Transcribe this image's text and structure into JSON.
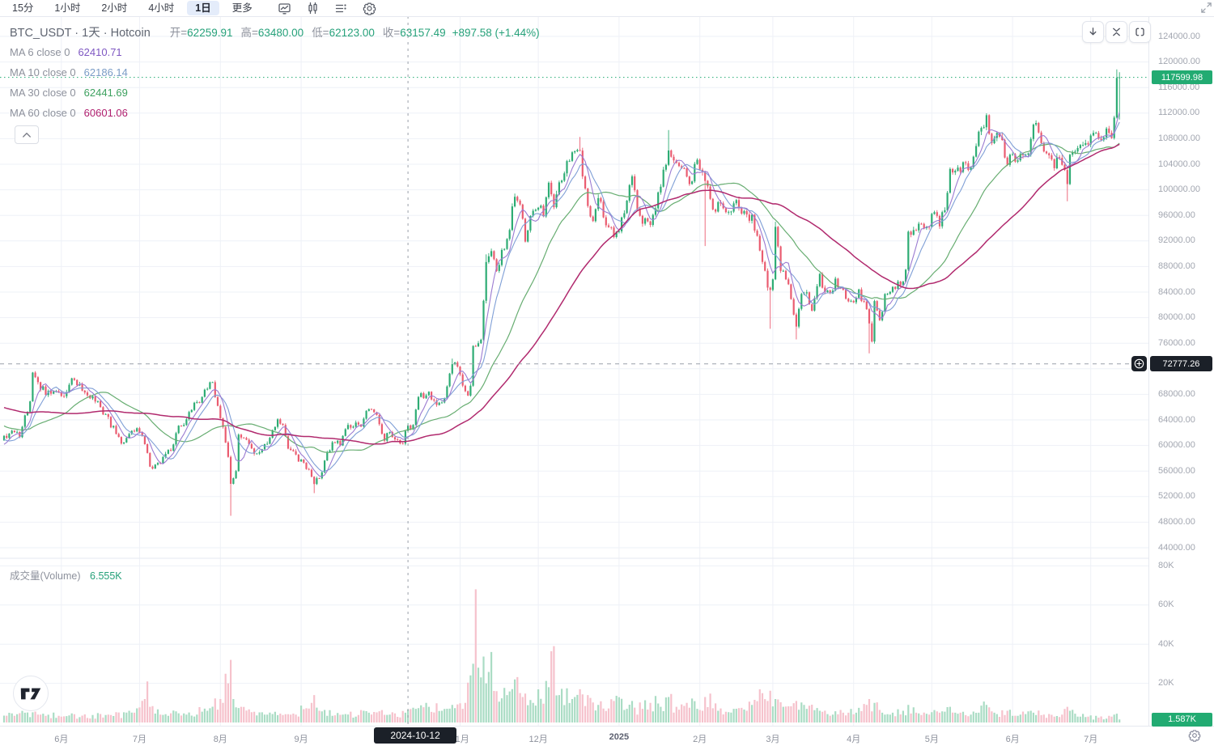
{
  "toolbar": {
    "intervals": [
      {
        "label": "15分",
        "active": false
      },
      {
        "label": "1小时",
        "active": false
      },
      {
        "label": "2小时",
        "active": false
      },
      {
        "label": "4小时",
        "active": false
      },
      {
        "label": "1日",
        "active": true
      },
      {
        "label": "更多",
        "active": false
      }
    ],
    "icons": [
      "chart-layout-icon",
      "candlestick-style-icon",
      "indicator-list-icon",
      "settings-gear-icon"
    ],
    "window_icon": "expand-window-icon"
  },
  "header": {
    "title": "BTC_USDT · 1天 · Hotcoin",
    "fields": [
      {
        "label": "开=",
        "value": "62259.91"
      },
      {
        "label": "高=",
        "value": "63480.00"
      },
      {
        "label": "低=",
        "value": "62123.00"
      },
      {
        "label": "收=",
        "value": "63157.49"
      }
    ],
    "change": "+897.58 (+1.44%)"
  },
  "ma_legend": [
    {
      "label": "MA 6 close 0",
      "value": "62410.71",
      "color": "#7e57c2"
    },
    {
      "label": "MA 10 close 0",
      "value": "62186.14",
      "color": "#7a9cc6"
    },
    {
      "label": "MA 30 close 0",
      "value": "62441.69",
      "color": "#3da15f"
    },
    {
      "label": "MA 60 close 0",
      "value": "60601.06",
      "color": "#b01e6e"
    }
  ],
  "price_axis": {
    "current_price": "117599.98",
    "crosshair_price": "72777.26"
  },
  "volume_pane": {
    "legend_label": "成交量(Volume)",
    "legend_value": "6.555K",
    "last_value": "1.587K"
  },
  "time_axis": {
    "crosshair_date": "2024-10-12"
  },
  "colors": {
    "up": "#2eac74",
    "down": "#ea5c70",
    "up_vol": "#aadcc4",
    "down_vol": "#f6c2cc",
    "badge_green": "#22ab72",
    "badge_dark": "#1b2028",
    "grid": "#eef1f7",
    "crosshair": "#9aa0aa",
    "ma6": "#9b7bd1",
    "ma10": "#7f9fd6",
    "ma30": "#67ad71",
    "ma60": "#b12a6e"
  },
  "chart_data": {
    "type": "candlestick+volume",
    "symbol": "BTC_USDT",
    "interval": "1天",
    "exchange": "Hotcoin",
    "legend_note": "legend values shown at crosshair date",
    "ohlc_at_crosshair": {
      "date": "2024-10-12",
      "open": 62259.91,
      "high": 63480.0,
      "low": 62123.0,
      "close": 63157.49,
      "change": 897.58,
      "change_pct": 1.44,
      "volume_k": 6.555
    },
    "moving_averages_at_crosshair": [
      {
        "period": 6,
        "value": 62410.71
      },
      {
        "period": 10,
        "value": 62186.14
      },
      {
        "period": 30,
        "value": 62441.69
      },
      {
        "period": 60,
        "value": 60601.06
      }
    ],
    "last": {
      "close": 117599.98,
      "volume_k": 1.587
    },
    "price_axis": {
      "max": 124000,
      "min": 44000,
      "tick_step": 4000,
      "y_ticks": [
        124000,
        120000,
        116000,
        112000,
        108000,
        104000,
        100000,
        96000,
        92000,
        88000,
        84000,
        80000,
        76000,
        68000,
        64000,
        60000,
        56000,
        52000,
        48000,
        44000
      ]
    },
    "volume_axis": {
      "ticks_k": [
        80,
        60,
        40,
        20
      ]
    },
    "x_ticks": [
      {
        "label": "6月",
        "i": 22
      },
      {
        "label": "7月",
        "i": 52
      },
      {
        "label": "8月",
        "i": 83
      },
      {
        "label": "9月",
        "i": 114
      },
      {
        "label": "11月",
        "i": 175
      },
      {
        "label": "12月",
        "i": 205
      },
      {
        "label": "2025",
        "i": 236,
        "year": true
      },
      {
        "label": "2月",
        "i": 267
      },
      {
        "label": "3月",
        "i": 295
      },
      {
        "label": "4月",
        "i": 326
      },
      {
        "label": "5月",
        "i": 356
      },
      {
        "label": "6月",
        "i": 387
      },
      {
        "label": "7月",
        "i": 417
      }
    ],
    "crosshair": {
      "candle_index": 155,
      "price": 72777.26,
      "date": "2024-10-12"
    },
    "candles_visible": 429,
    "warmup": 60,
    "start_date": "2024-05-10",
    "price_anchors": [
      [
        -60,
        68300
      ],
      [
        -50,
        67500
      ],
      [
        -42,
        69800
      ],
      [
        -34,
        70700
      ],
      [
        -26,
        64000
      ],
      [
        -18,
        63800
      ],
      [
        -10,
        63900
      ],
      [
        -4,
        59000
      ],
      [
        -1,
        60800
      ],
      [
        0,
        61500
      ],
      [
        3,
        62300
      ],
      [
        6,
        61300
      ],
      [
        10,
        66900
      ],
      [
        11,
        71400
      ],
      [
        13,
        69900
      ],
      [
        16,
        67900
      ],
      [
        20,
        68500
      ],
      [
        23,
        67700
      ],
      [
        26,
        70500
      ],
      [
        28,
        69400
      ],
      [
        31,
        68300
      ],
      [
        34,
        67700
      ],
      [
        37,
        66000
      ],
      [
        39,
        64900
      ],
      [
        43,
        61800
      ],
      [
        45,
        60300
      ],
      [
        48,
        61800
      ],
      [
        51,
        62700
      ],
      [
        54,
        60200
      ],
      [
        56,
        56700
      ],
      [
        58,
        57000
      ],
      [
        61,
        58200
      ],
      [
        64,
        59200
      ],
      [
        67,
        63100
      ],
      [
        70,
        64100
      ],
      [
        73,
        66700
      ],
      [
        76,
        67600
      ],
      [
        80,
        69900
      ],
      [
        82,
        66200
      ],
      [
        84,
        62900
      ],
      [
        86,
        58200
      ],
      [
        87,
        54000
      ],
      [
        89,
        56000
      ],
      [
        90,
        61700
      ],
      [
        93,
        60900
      ],
      [
        96,
        58700
      ],
      [
        99,
        59400
      ],
      [
        102,
        61200
      ],
      [
        105,
        64100
      ],
      [
        107,
        63200
      ],
      [
        109,
        59500
      ],
      [
        111,
        59100
      ],
      [
        113,
        57500
      ],
      [
        115,
        57300
      ],
      [
        117,
        56200
      ],
      [
        119,
        53960
      ],
      [
        121,
        54850
      ],
      [
        123,
        57650
      ],
      [
        126,
        60500
      ],
      [
        129,
        60000
      ],
      [
        132,
        63200
      ],
      [
        135,
        63600
      ],
      [
        137,
        62950
      ],
      [
        140,
        65700
      ],
      [
        142,
        65200
      ],
      [
        144,
        63330
      ],
      [
        146,
        60750
      ],
      [
        148,
        62100
      ],
      [
        150,
        60950
      ],
      [
        153,
        60280
      ],
      [
        154,
        62259.91
      ],
      [
        155,
        63157.49
      ],
      [
        157,
        63200
      ],
      [
        159,
        67600
      ],
      [
        161,
        67400
      ],
      [
        163,
        68400
      ],
      [
        165,
        67040
      ],
      [
        167,
        66700
      ],
      [
        169,
        67370
      ],
      [
        172,
        72720
      ],
      [
        174,
        72340
      ],
      [
        176,
        69360
      ],
      [
        178,
        67810
      ],
      [
        179,
        69360
      ],
      [
        180,
        75570
      ],
      [
        182,
        76000
      ],
      [
        183,
        76550
      ],
      [
        185,
        88700
      ],
      [
        187,
        90400
      ],
      [
        189,
        87300
      ],
      [
        191,
        90600
      ],
      [
        193,
        92300
      ],
      [
        196,
        98900
      ],
      [
        198,
        97700
      ],
      [
        200,
        91900
      ],
      [
        202,
        95900
      ],
      [
        205,
        97200
      ],
      [
        207,
        95850
      ],
      [
        209,
        101100
      ],
      [
        211,
        97280
      ],
      [
        213,
        101170
      ],
      [
        216,
        104500
      ],
      [
        219,
        106030
      ],
      [
        221,
        106140
      ],
      [
        223,
        100200
      ],
      [
        224,
        97460
      ],
      [
        226,
        95100
      ],
      [
        228,
        98700
      ],
      [
        230,
        95700
      ],
      [
        232,
        94160
      ],
      [
        234,
        92600
      ],
      [
        236,
        93500
      ],
      [
        239,
        98300
      ],
      [
        241,
        102100
      ],
      [
        243,
        96950
      ],
      [
        245,
        94700
      ],
      [
        248,
        94510
      ],
      [
        250,
        97100
      ],
      [
        252,
        100500
      ],
      [
        255,
        106150
      ],
      [
        257,
        104600
      ],
      [
        259,
        103700
      ],
      [
        262,
        102080
      ],
      [
        264,
        101300
      ],
      [
        266,
        104700
      ],
      [
        269,
        101400
      ],
      [
        271,
        98600
      ],
      [
        273,
        96600
      ],
      [
        275,
        97860
      ],
      [
        277,
        96500
      ],
      [
        279,
        96600
      ],
      [
        281,
        98400
      ],
      [
        283,
        96280
      ],
      [
        285,
        96130
      ],
      [
        287,
        96100
      ],
      [
        289,
        92800
      ],
      [
        291,
        88700
      ],
      [
        293,
        84700
      ],
      [
        294,
        84350
      ],
      [
        295,
        86000
      ],
      [
        296,
        94200
      ],
      [
        298,
        87300
      ],
      [
        300,
        86000
      ],
      [
        302,
        82900
      ],
      [
        304,
        78600
      ],
      [
        306,
        83700
      ],
      [
        308,
        83960
      ],
      [
        310,
        81100
      ],
      [
        313,
        86850
      ],
      [
        315,
        84000
      ],
      [
        317,
        83800
      ],
      [
        319,
        86100
      ],
      [
        322,
        84350
      ],
      [
        324,
        82550
      ],
      [
        326,
        82400
      ],
      [
        328,
        84400
      ],
      [
        330,
        82500
      ],
      [
        332,
        79100
      ],
      [
        333,
        76270
      ],
      [
        334,
        82600
      ],
      [
        336,
        79600
      ],
      [
        338,
        83700
      ],
      [
        340,
        84030
      ],
      [
        342,
        84500
      ],
      [
        344,
        85100
      ],
      [
        346,
        87500
      ],
      [
        347,
        93440
      ],
      [
        349,
        93700
      ],
      [
        351,
        94700
      ],
      [
        353,
        94000
      ],
      [
        355,
        94180
      ],
      [
        357,
        96500
      ],
      [
        359,
        94300
      ],
      [
        361,
        96800
      ],
      [
        363,
        103250
      ],
      [
        365,
        102970
      ],
      [
        367,
        102800
      ],
      [
        369,
        104170
      ],
      [
        371,
        103500
      ],
      [
        373,
        106850
      ],
      [
        375,
        109680
      ],
      [
        377,
        111670
      ],
      [
        379,
        107290
      ],
      [
        381,
        108900
      ],
      [
        383,
        107800
      ],
      [
        385,
        103900
      ],
      [
        387,
        105570
      ],
      [
        389,
        104600
      ],
      [
        391,
        105400
      ],
      [
        393,
        105700
      ],
      [
        395,
        110200
      ],
      [
        397,
        108960
      ],
      [
        399,
        106000
      ],
      [
        401,
        105400
      ],
      [
        403,
        103370
      ],
      [
        405,
        105000
      ],
      [
        406,
        103900
      ],
      [
        408,
        100900
      ],
      [
        409,
        105500
      ],
      [
        411,
        106000
      ],
      [
        413,
        107000
      ],
      [
        415,
        107300
      ],
      [
        416,
        107100
      ],
      [
        418,
        108900
      ],
      [
        420,
        108000
      ],
      [
        422,
        108200
      ],
      [
        424,
        108900
      ],
      [
        425,
        108100
      ],
      [
        426,
        111300
      ],
      [
        427,
        117500
      ],
      [
        428,
        117599.98
      ]
    ],
    "wick_specials": {
      "87": {
        "low": 49000
      },
      "119": {
        "low": 52550
      },
      "155": {
        "high": 63480,
        "low": 62123
      },
      "172": {
        "high": 73600
      },
      "185": {
        "high": 89900
      },
      "221": {
        "high": 108260
      },
      "255": {
        "high": 109350
      },
      "269": {
        "low": 91200
      },
      "294": {
        "low": 78250
      },
      "296": {
        "high": 95000
      },
      "304": {
        "low": 76600
      },
      "332": {
        "low": 74400
      },
      "377": {
        "high": 111970
      },
      "408": {
        "low": 98200
      },
      "427": {
        "high": 118850
      },
      "428": {
        "high": 118400,
        "low": 111000
      }
    },
    "volume_anchors_k": [
      [
        -60,
        3
      ],
      [
        0,
        3.5
      ],
      [
        8,
        5
      ],
      [
        14,
        4
      ],
      [
        22,
        3
      ],
      [
        30,
        3.5
      ],
      [
        40,
        4
      ],
      [
        50,
        5
      ],
      [
        54,
        12
      ],
      [
        55,
        21
      ],
      [
        56,
        8
      ],
      [
        60,
        4
      ],
      [
        70,
        4
      ],
      [
        78,
        6
      ],
      [
        84,
        10
      ],
      [
        87,
        32
      ],
      [
        88,
        12
      ],
      [
        91,
        8
      ],
      [
        100,
        4
      ],
      [
        110,
        4
      ],
      [
        118,
        10
      ],
      [
        119,
        14
      ],
      [
        121,
        6
      ],
      [
        130,
        4
      ],
      [
        140,
        5
      ],
      [
        148,
        4
      ],
      [
        154,
        5
      ],
      [
        155,
        6.555
      ],
      [
        158,
        7
      ],
      [
        163,
        8
      ],
      [
        168,
        6
      ],
      [
        172,
        9
      ],
      [
        176,
        7
      ],
      [
        180,
        30
      ],
      [
        181,
        68
      ],
      [
        182,
        28
      ],
      [
        185,
        20
      ],
      [
        187,
        36
      ],
      [
        189,
        16
      ],
      [
        193,
        14
      ],
      [
        196,
        22
      ],
      [
        199,
        13
      ],
      [
        203,
        10
      ],
      [
        209,
        18
      ],
      [
        211,
        39
      ],
      [
        213,
        14
      ],
      [
        218,
        12
      ],
      [
        221,
        17
      ],
      [
        224,
        14
      ],
      [
        228,
        9
      ],
      [
        234,
        11
      ],
      [
        239,
        7
      ],
      [
        241,
        11
      ],
      [
        245,
        7
      ],
      [
        248,
        10
      ],
      [
        252,
        8
      ],
      [
        255,
        13
      ],
      [
        258,
        8
      ],
      [
        262,
        10
      ],
      [
        266,
        7
      ],
      [
        269,
        13
      ],
      [
        274,
        6
      ],
      [
        280,
        7
      ],
      [
        285,
        6
      ],
      [
        287,
        9
      ],
      [
        291,
        15
      ],
      [
        293,
        11
      ],
      [
        296,
        12
      ],
      [
        299,
        8
      ],
      [
        304,
        11
      ],
      [
        308,
        7
      ],
      [
        313,
        6
      ],
      [
        318,
        4
      ],
      [
        322,
        5
      ],
      [
        327,
        5
      ],
      [
        331,
        9
      ],
      [
        332,
        12
      ],
      [
        334,
        10
      ],
      [
        337,
        5
      ],
      [
        341,
        5
      ],
      [
        345,
        6
      ],
      [
        347,
        9
      ],
      [
        350,
        5
      ],
      [
        355,
        4
      ],
      [
        359,
        5
      ],
      [
        363,
        8
      ],
      [
        365,
        5
      ],
      [
        367,
        5
      ],
      [
        371,
        4
      ],
      [
        374,
        5
      ],
      [
        377,
        9
      ],
      [
        380,
        5
      ],
      [
        385,
        6
      ],
      [
        390,
        4
      ],
      [
        395,
        5
      ],
      [
        399,
        4
      ],
      [
        403,
        3
      ],
      [
        406,
        4
      ],
      [
        408,
        8
      ],
      [
        409,
        6
      ],
      [
        412,
        3
      ],
      [
        416,
        3
      ],
      [
        420,
        2.5
      ],
      [
        423,
        2
      ],
      [
        425,
        3
      ],
      [
        426,
        4
      ],
      [
        427,
        4.5
      ],
      [
        428,
        1.587
      ]
    ]
  }
}
